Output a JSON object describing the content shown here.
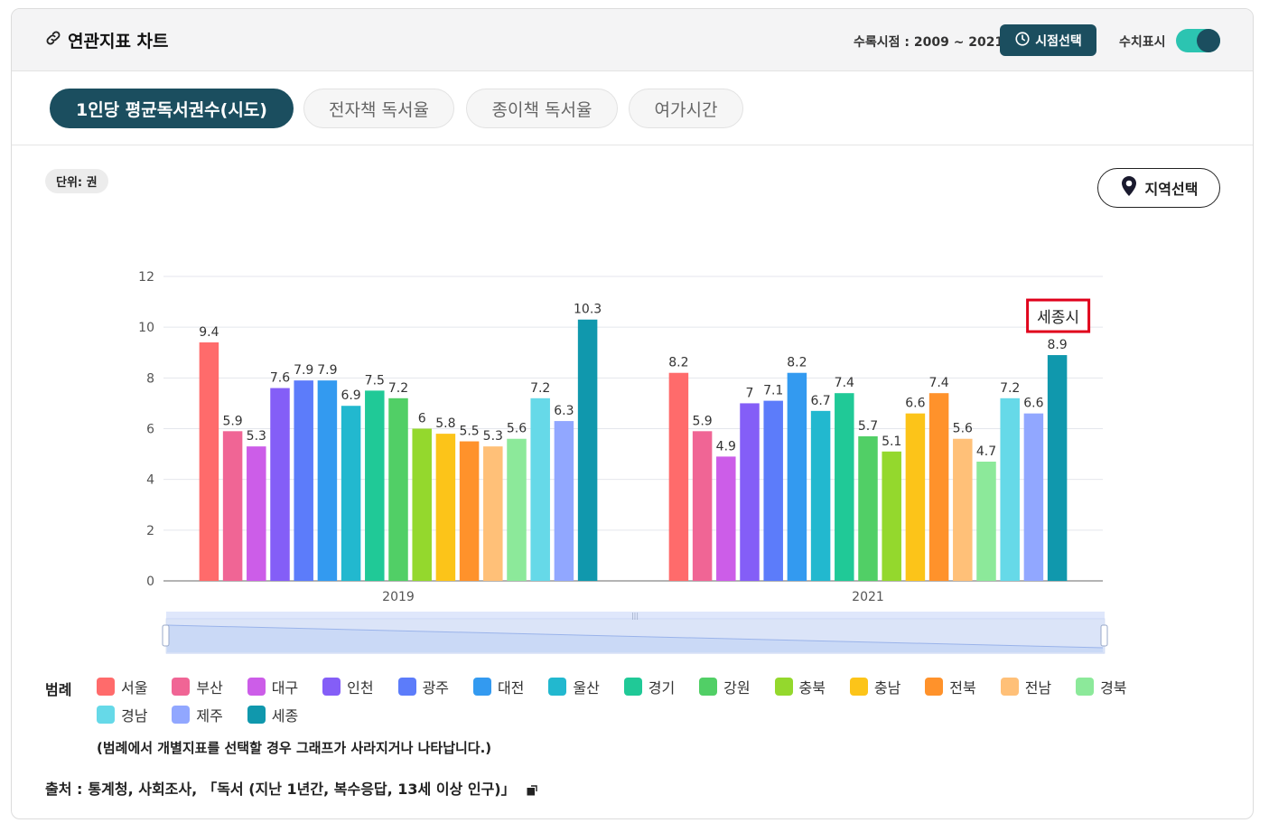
{
  "header": {
    "title": "연관지표 차트",
    "period_label": "수록시점 : 2009 ~ 2021",
    "period_button": "시점선택",
    "value_toggle_label": "수치표시",
    "value_toggle_on": true
  },
  "tabs": [
    {
      "label": "1인당 평균독서권수(시도)",
      "active": true
    },
    {
      "label": "전자책 독서율",
      "active": false
    },
    {
      "label": "종이책 독서율",
      "active": false
    },
    {
      "label": "여가시간",
      "active": false
    }
  ],
  "unit_label": "단위: 권",
  "region_button": "지역선택",
  "tooltip_label": "세종시",
  "legend": {
    "title": "범례",
    "note": "(범례에서 개별지표를 선택할 경우 그래프가 사라지거나 나타납니다.)"
  },
  "source": {
    "label": "출처 :",
    "text": "통계청, 사회조사,",
    "title": "「독서 (지난 1년간, 복수응답, 13세 이상 인구)」"
  },
  "colors": {
    "accent": "#1b4e5f",
    "toggle": "#2cc4b1",
    "highlight_box": "#e0001b"
  },
  "chart_data": {
    "type": "bar",
    "categories": [
      "2019",
      "2021"
    ],
    "ylim": [
      0,
      12
    ],
    "yticks": [
      0,
      2,
      4,
      6,
      8,
      10,
      12
    ],
    "grid": true,
    "data_labels": true,
    "series": [
      {
        "name": "서울",
        "color": "#ff6b6b",
        "values": [
          9.4,
          8.2
        ]
      },
      {
        "name": "부산",
        "color": "#f06595",
        "values": [
          5.9,
          5.9
        ]
      },
      {
        "name": "대구",
        "color": "#cc5de8",
        "values": [
          5.3,
          4.9
        ]
      },
      {
        "name": "인천",
        "color": "#845ef7",
        "values": [
          7.6,
          7
        ]
      },
      {
        "name": "광주",
        "color": "#5c7cfa",
        "values": [
          7.9,
          7.1
        ]
      },
      {
        "name": "대전",
        "color": "#339af0",
        "values": [
          7.9,
          8.2
        ]
      },
      {
        "name": "울산",
        "color": "#22b8cf",
        "values": [
          6.9,
          6.7
        ]
      },
      {
        "name": "경기",
        "color": "#20c997",
        "values": [
          7.5,
          7.4
        ]
      },
      {
        "name": "강원",
        "color": "#51cf66",
        "values": [
          7.2,
          5.7
        ]
      },
      {
        "name": "충북",
        "color": "#94d82d",
        "values": [
          6,
          5.1
        ]
      },
      {
        "name": "충남",
        "color": "#fcc419",
        "values": [
          5.8,
          6.6
        ]
      },
      {
        "name": "전북",
        "color": "#ff922b",
        "values": [
          5.5,
          7.4
        ]
      },
      {
        "name": "전남",
        "color": "#ffc078",
        "values": [
          5.3,
          5.6
        ]
      },
      {
        "name": "경북",
        "color": "#8ce99a",
        "values": [
          5.6,
          4.7
        ]
      },
      {
        "name": "경남",
        "color": "#66d9e8",
        "values": [
          7.2,
          7.2
        ]
      },
      {
        "name": "제주",
        "color": "#91a7ff",
        "values": [
          6.3,
          6.6
        ]
      },
      {
        "name": "세종",
        "color": "#1098ad",
        "values": [
          10.3,
          8.9
        ]
      }
    ]
  }
}
